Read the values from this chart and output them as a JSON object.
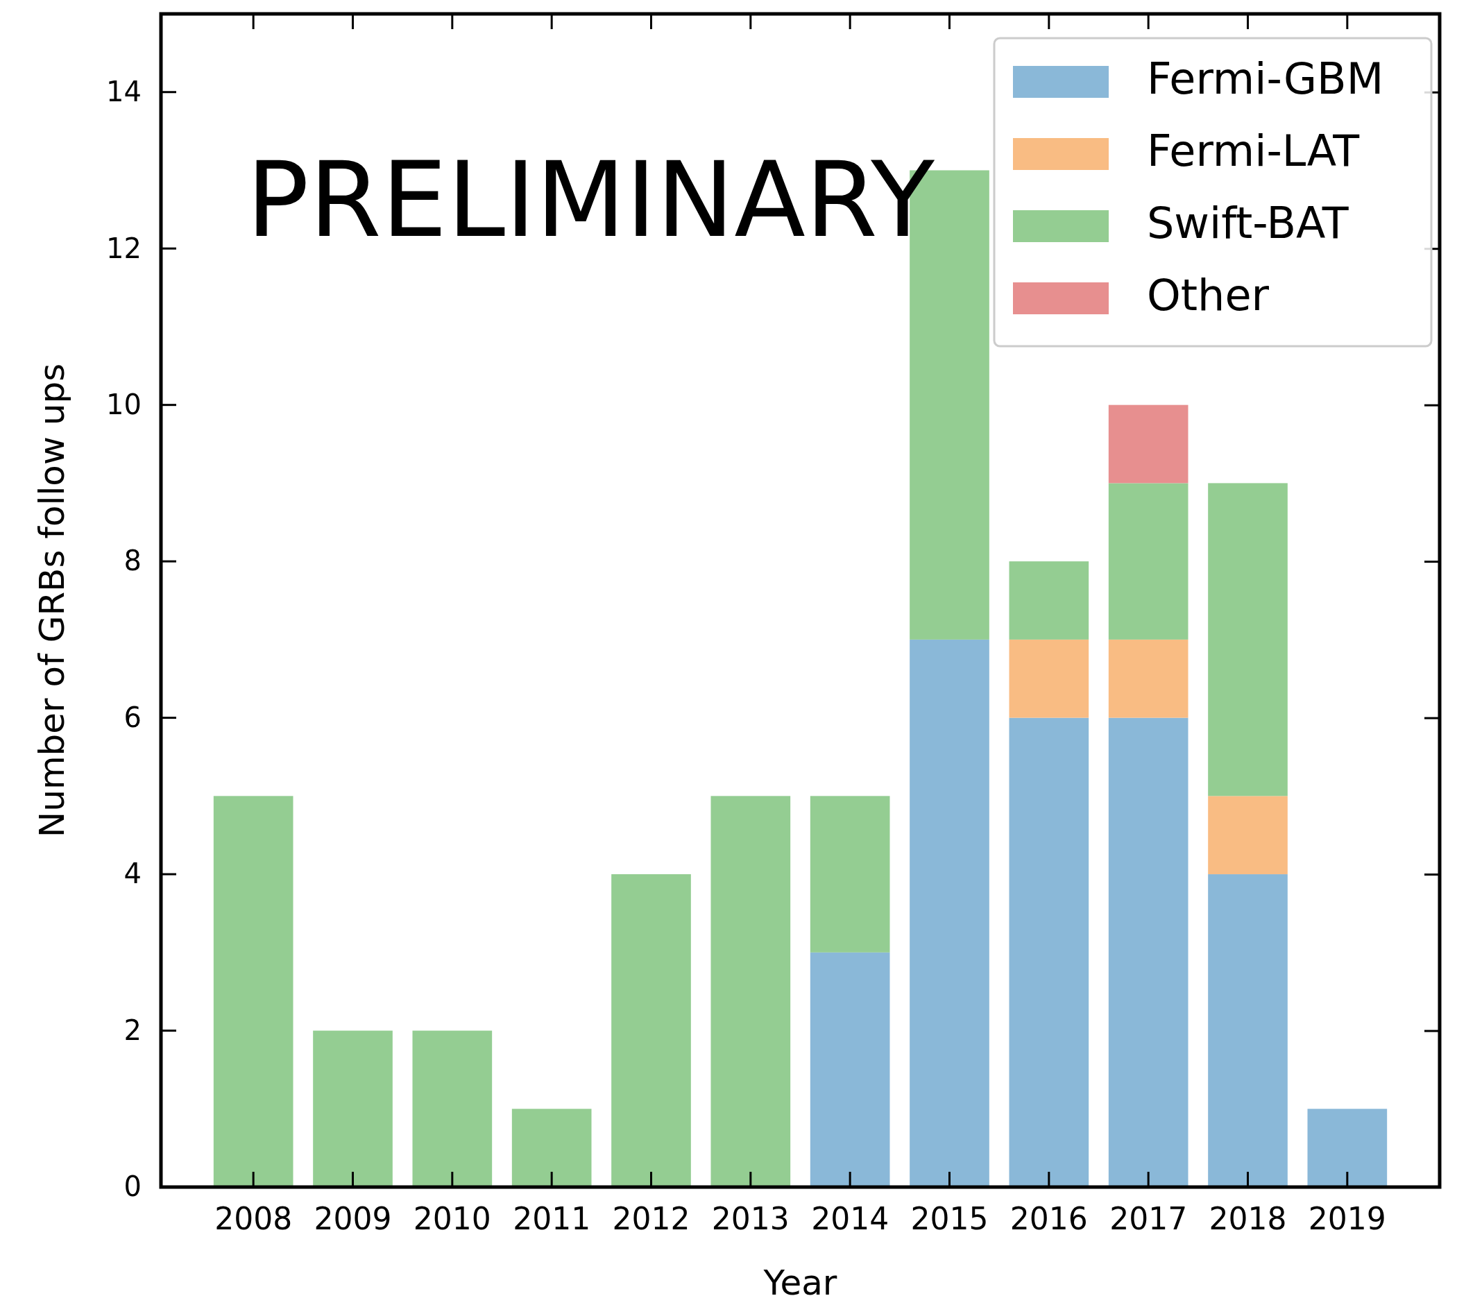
{
  "chart_data": {
    "type": "bar",
    "stacked": true,
    "xlabel": "Year",
    "ylabel": "Number of GRBs follow ups",
    "categories": [
      "2008",
      "2009",
      "2010",
      "2011",
      "2012",
      "2013",
      "2014",
      "2015",
      "2016",
      "2017",
      "2018",
      "2019"
    ],
    "series": [
      {
        "name": "Fermi-GBM",
        "color": "#8ab8d8",
        "values": [
          0,
          0,
          0,
          0,
          0,
          0,
          3,
          7,
          6,
          6,
          4,
          1
        ]
      },
      {
        "name": "Fermi-LAT",
        "color": "#f9bc83",
        "values": [
          0,
          0,
          0,
          0,
          0,
          0,
          0,
          0,
          1,
          1,
          1,
          0
        ]
      },
      {
        "name": "Swift-BAT",
        "color": "#94cd92",
        "values": [
          5,
          2,
          2,
          1,
          4,
          5,
          2,
          6,
          1,
          2,
          4,
          0
        ]
      },
      {
        "name": "Other",
        "color": "#e78f8f",
        "values": [
          0,
          0,
          0,
          0,
          0,
          0,
          0,
          0,
          0,
          1,
          0,
          0
        ]
      }
    ],
    "ylim": [
      0,
      15
    ],
    "yticks": [
      0,
      2,
      4,
      6,
      8,
      10,
      12,
      14
    ],
    "grid": false,
    "legend": "top right",
    "annotations": [
      "PRELIMINARY"
    ]
  }
}
